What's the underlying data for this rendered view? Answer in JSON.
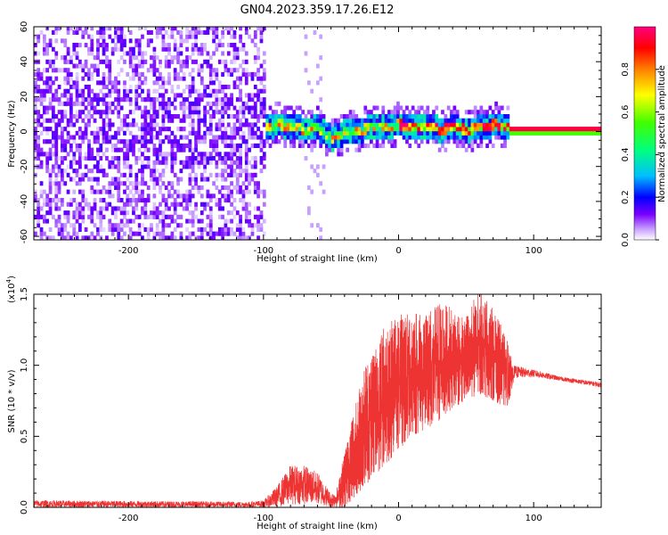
{
  "figure": {
    "title": "GN04.2023.359.17.26.E12"
  },
  "chart_data": [
    {
      "type": "heatmap",
      "xlabel": "Height of straight line (km)",
      "ylabel": "Frequency (Hz)",
      "xlim": [
        -270,
        150
      ],
      "ylim": [
        -62,
        60
      ],
      "x_ticks": [
        -200,
        -100,
        0,
        100
      ],
      "y_ticks": [
        -60,
        -40,
        -20,
        0,
        20,
        40,
        60
      ],
      "colorbar": {
        "label": "Normalized spectral amplitude",
        "ticks": [
          0.0,
          0.2,
          0.4,
          0.6,
          0.8
        ],
        "range": [
          0,
          1
        ],
        "colormap": "rainbow-violet-to-red"
      },
      "regions": [
        {
          "x_range": [
            -270,
            -100
          ],
          "description_level": "uniform noise 0-0.15"
        },
        {
          "x_range": [
            -100,
            80
          ],
          "description_level": "signal track 0.2-0.9"
        },
        {
          "x_range": [
            80,
            150
          ],
          "description_level": "narrow band 0.9-1.0"
        }
      ],
      "track_center": [
        [
          -100,
          2
        ],
        [
          -90,
          3
        ],
        [
          -80,
          2
        ],
        [
          -70,
          0
        ],
        [
          -60,
          1
        ],
        [
          -55,
          -3
        ],
        [
          -50,
          -5
        ],
        [
          -45,
          -3
        ],
        [
          -40,
          -1
        ],
        [
          -30,
          0
        ],
        [
          -20,
          1
        ],
        [
          -10,
          2
        ],
        [
          0,
          3
        ],
        [
          10,
          1
        ],
        [
          20,
          2
        ],
        [
          30,
          0
        ],
        [
          40,
          1
        ],
        [
          50,
          0
        ],
        [
          60,
          1
        ],
        [
          70,
          3
        ],
        [
          80,
          2
        ],
        [
          150,
          0
        ]
      ]
    },
    {
      "type": "line",
      "xlabel": "Height of straight line (km)",
      "ylabel": "SNR (10 * v/v)",
      "y_scale_label": "(x10",
      "y_scale_exp": "4",
      "y_scale_close": ")",
      "xlim": [
        -270,
        150
      ],
      "ylim": [
        0,
        1.5
      ],
      "x_ticks": [
        -200,
        -100,
        0,
        100
      ],
      "y_ticks": [
        0.0,
        0.5,
        1.0,
        1.5
      ],
      "y_tick_labels": [
        "0.0",
        "0.5",
        "1.0",
        "1.5"
      ],
      "series": [
        {
          "color": "#ee3333",
          "envelope_x": [
            -270,
            -110,
            -100,
            -90,
            -80,
            -70,
            -60,
            -50,
            -45,
            -40,
            -35,
            -30,
            -25,
            -20,
            -10,
            0,
            10,
            20,
            30,
            40,
            50,
            60,
            70,
            80,
            85,
            100,
            120,
            150
          ],
          "envelope_min": [
            0.0,
            0.0,
            0.0,
            0.0,
            0.02,
            0.02,
            0.02,
            0.0,
            0.0,
            0.0,
            0.05,
            0.1,
            0.15,
            0.2,
            0.3,
            0.4,
            0.5,
            0.55,
            0.6,
            0.7,
            0.75,
            0.8,
            0.75,
            0.7,
            0.85,
            0.88,
            0.87,
            0.82
          ],
          "envelope_max": [
            0.05,
            0.04,
            0.05,
            0.15,
            0.3,
            0.3,
            0.25,
            0.1,
            0.15,
            0.4,
            0.6,
            0.8,
            1.0,
            1.1,
            1.3,
            1.35,
            1.4,
            1.35,
            1.45,
            1.4,
            1.35,
            1.55,
            1.4,
            1.2,
            1.0,
            0.97,
            0.92,
            0.88
          ]
        }
      ]
    }
  ]
}
